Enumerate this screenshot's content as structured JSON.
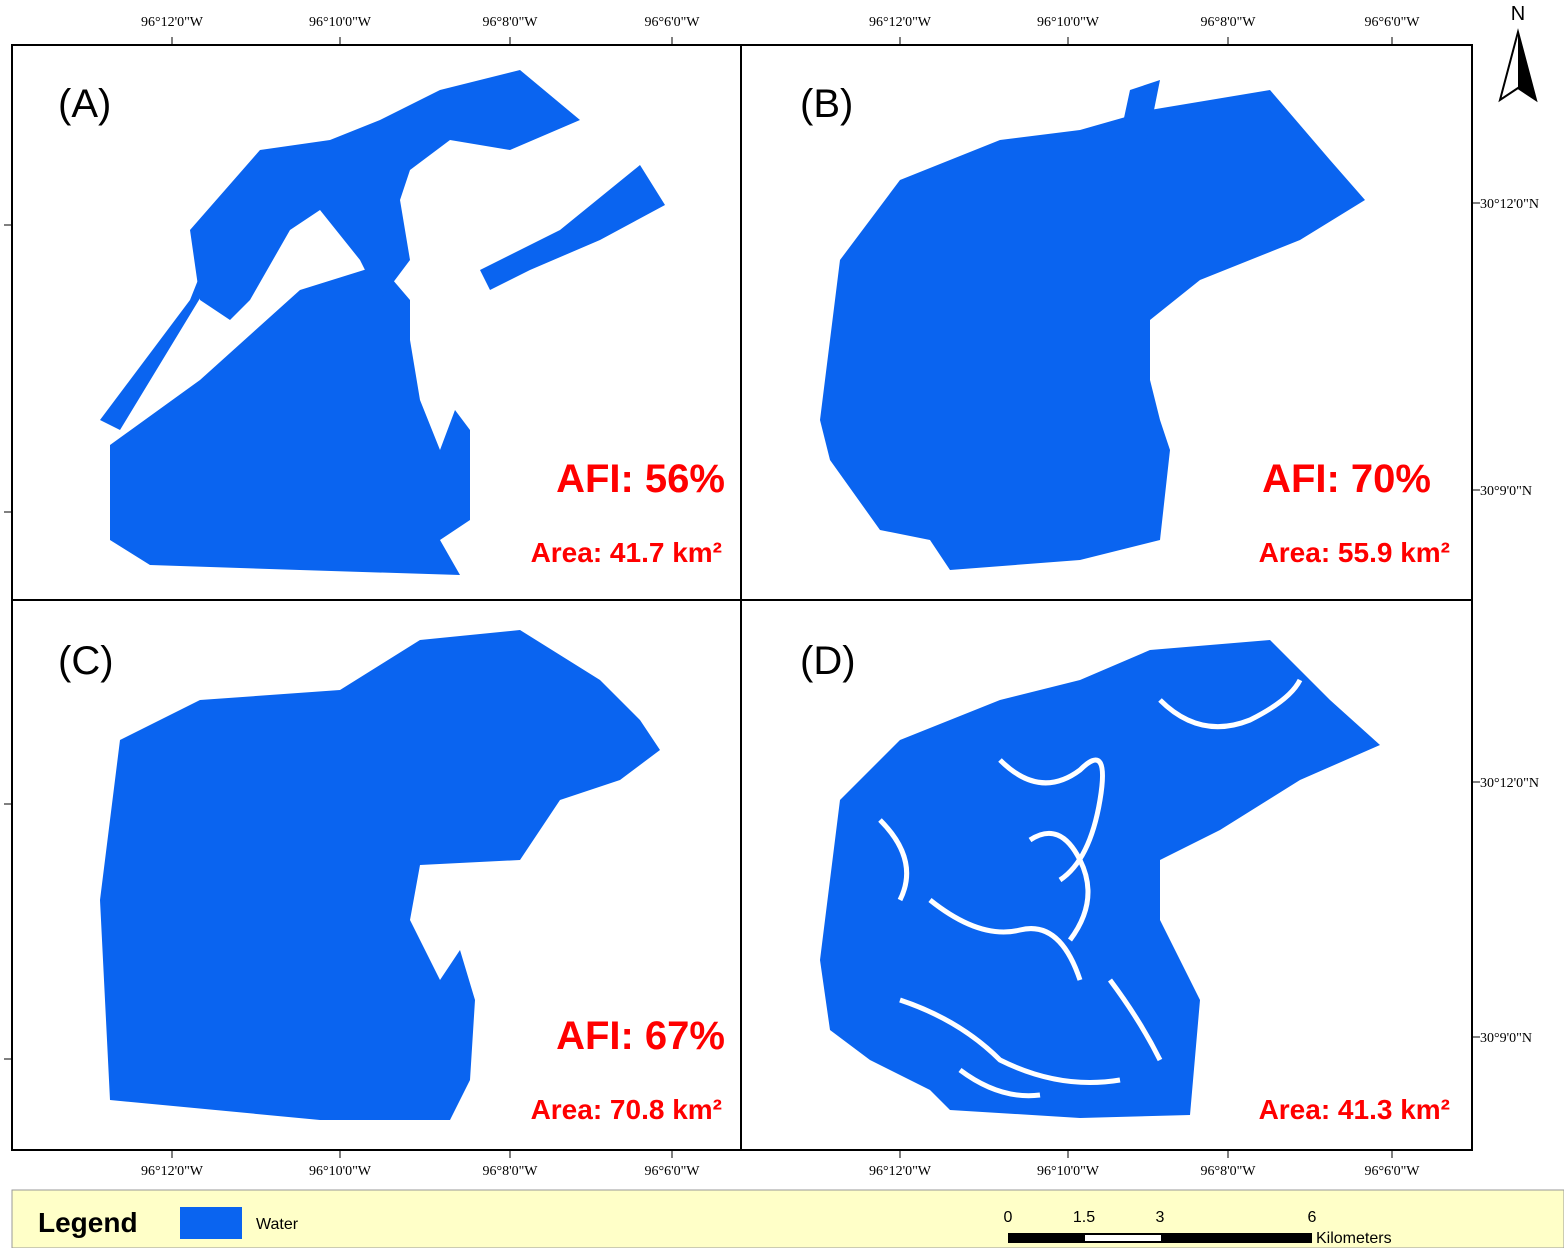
{
  "north": "N",
  "x_axis_labels": [
    "96°12'0\"W",
    "96°10'0\"W",
    "96°8'0\"W",
    "96°6'0\"W"
  ],
  "y_axis_labels": [
    "30°12'0\"N",
    "30°9'0\"N"
  ],
  "panels": [
    {
      "label": "(A)",
      "afi": "AFI: 56%",
      "area": "Area: 41.7 km²"
    },
    {
      "label": "(B)",
      "afi": "AFI: 70%",
      "area": "Area: 55.9 km²"
    },
    {
      "label": "(C)",
      "afi": "AFI: 67%",
      "area": "Area: 70.8 km²"
    },
    {
      "label": "(D)",
      "area": "Area: 41.3 km²"
    }
  ],
  "legend": {
    "title": "Legend",
    "item": "Water"
  },
  "scale_bar": {
    "ticks": [
      "0",
      "1.5",
      "3",
      "6"
    ],
    "unit": "Kilometers"
  }
}
